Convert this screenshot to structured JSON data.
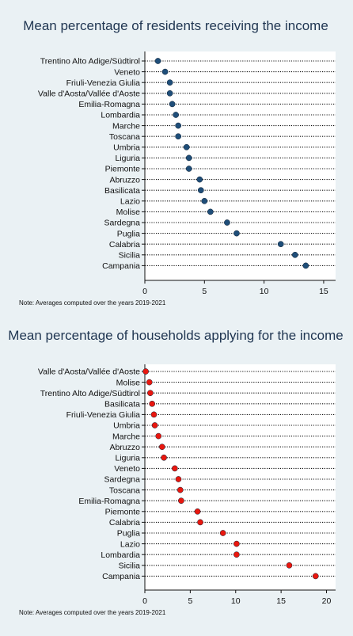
{
  "chart_data": [
    {
      "type": "scatter",
      "title": "Mean percentage of residents receiving the income",
      "note": "Note: Averages computed over the years 2019-2021",
      "marker_color": "#1f4e79",
      "categories": [
        "Trentino Alto Adige/Südtirol",
        "Veneto",
        "Friuli-Venezia Giulia",
        "Valle d'Aosta/Vallée d'Aoste",
        "Emilia-Romagna",
        "Lombardia",
        "Marche",
        "Toscana",
        "Umbria",
        "Liguria",
        "Piemonte",
        "Abruzzo",
        "Basilicata",
        "Lazio",
        "Molise",
        "Sardegna",
        "Puglia",
        "Calabria",
        "Sicilia",
        "Campania"
      ],
      "values": [
        1.1,
        1.7,
        2.1,
        2.1,
        2.3,
        2.6,
        2.8,
        2.8,
        3.5,
        3.7,
        3.7,
        4.6,
        4.7,
        5.0,
        5.5,
        6.9,
        7.7,
        11.4,
        12.6,
        13.5
      ],
      "xlim": [
        0,
        16
      ],
      "xticks": [
        0,
        5,
        10,
        15
      ]
    },
    {
      "type": "scatter",
      "title": "Mean percentage of households applying for the income",
      "note": "Note: Averages computed over the years 2019-2021",
      "marker_color": "#e8170f",
      "categories": [
        "Valle d'Aosta/Vallée d'Aoste",
        "Molise",
        "Trentino Alto Adige/Südtirol",
        "Basilicata",
        "Friuli-Venezia Giulia",
        "Umbria",
        "Marche",
        "Abruzzo",
        "Liguria",
        "Veneto",
        "Sardegna",
        "Toscana",
        "Emilia-Romagna",
        "Piemonte",
        "Calabria",
        "Puglia",
        "Lazio",
        "Lombardia",
        "Sicilia",
        "Campania"
      ],
      "values": [
        0.1,
        0.5,
        0.6,
        0.8,
        1.0,
        1.1,
        1.5,
        1.9,
        2.1,
        3.3,
        3.7,
        3.9,
        4.0,
        5.8,
        6.1,
        8.6,
        10.1,
        10.1,
        15.9,
        18.8
      ],
      "xlim": [
        0,
        21
      ],
      "xticks": [
        0,
        5,
        10,
        15,
        20
      ]
    }
  ]
}
